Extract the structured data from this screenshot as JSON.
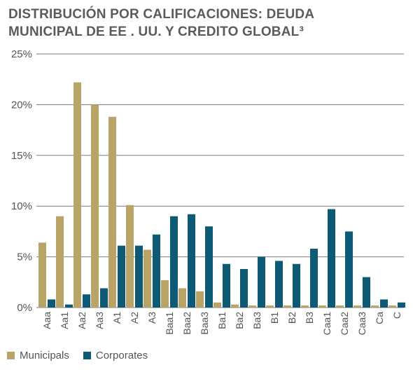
{
  "title_line1": "DISTRIBUCIÓN POR CALIFICACIONES: DEUDA",
  "title_line2": "MUNICIPAL DE EE . UU. Y CREDITO GLOBAL³",
  "chart_data": {
    "type": "bar",
    "categories": [
      "Aaa",
      "Aa1",
      "Aa2",
      "Aa3",
      "A1",
      "A2",
      "A3",
      "Baa1",
      "Baa2",
      "Baa3",
      "Ba1",
      "Ba2",
      "Ba3",
      "B1",
      "B2",
      "B3",
      "Caa1",
      "Caa2",
      "Caa3",
      "Ca",
      "C"
    ],
    "series": [
      {
        "name": "Municipals",
        "color": "#b8a467",
        "values": [
          6.4,
          9.0,
          22.2,
          20.0,
          18.8,
          10.1,
          5.7,
          2.7,
          1.9,
          1.6,
          0.5,
          0.3,
          0.2,
          0.2,
          0.2,
          0.2,
          0.2,
          0.2,
          0.2,
          0.2,
          0.2
        ]
      },
      {
        "name": "Corporates",
        "color": "#0c5a73",
        "values": [
          0.8,
          0.3,
          1.3,
          1.9,
          6.1,
          6.1,
          7.2,
          9.0,
          9.2,
          8.0,
          4.3,
          3.8,
          5.0,
          4.6,
          4.3,
          5.8,
          9.7,
          7.5,
          3.0,
          0.8,
          0.5
        ]
      }
    ],
    "yticks": [
      "0%",
      "5%",
      "10%",
      "15%",
      "20%",
      "25%"
    ],
    "ylim": [
      0,
      25
    ],
    "grid": true,
    "legend_position": "bottom-left"
  }
}
